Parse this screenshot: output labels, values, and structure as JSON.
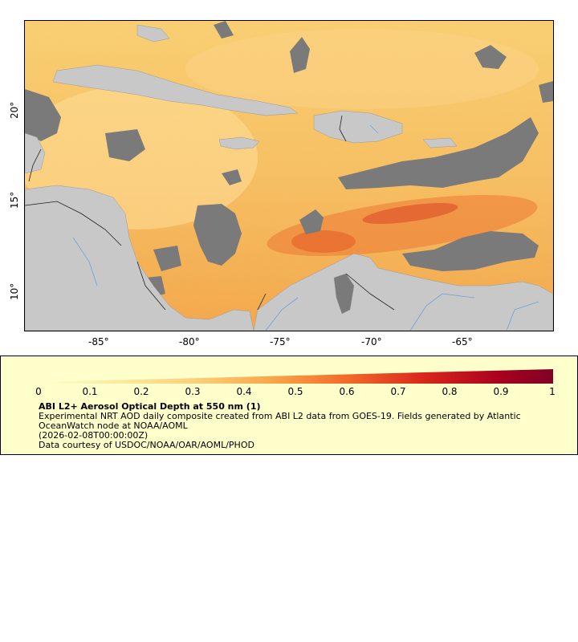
{
  "map": {
    "lon_ticks": [
      "-85°",
      "-80°",
      "-75°",
      "-70°",
      "-65°"
    ],
    "lat_ticks": [
      "20°",
      "15°",
      "10°"
    ],
    "colors": {
      "land": "#c8c8c8",
      "no_data": "#7a7a7a",
      "low_aod": "#ffeaa0",
      "mid_aod": "#f6b550",
      "high_aod": "#d62a1a",
      "border": "#000000",
      "rivers": "#6fa0d8"
    }
  },
  "legend": {
    "scale_labels": [
      "0",
      "0.1",
      "0.2",
      "0.3",
      "0.4",
      "0.5",
      "0.6",
      "0.7",
      "0.8",
      "0.9",
      "1"
    ],
    "title": "ABI L2+ Aerosol Optical Depth at 550 nm (1)",
    "description": "Experimental NRT AOD daily composite created from ABI L2 data from GOES-19. Fields generated by Atlantic OceanWatch node at NOAA/AOML",
    "timestamp": "(2026-02-08T00:00:00Z)",
    "credit": "Data courtesy of USDOC/NOAA/OAR/AOML/PHOD"
  }
}
